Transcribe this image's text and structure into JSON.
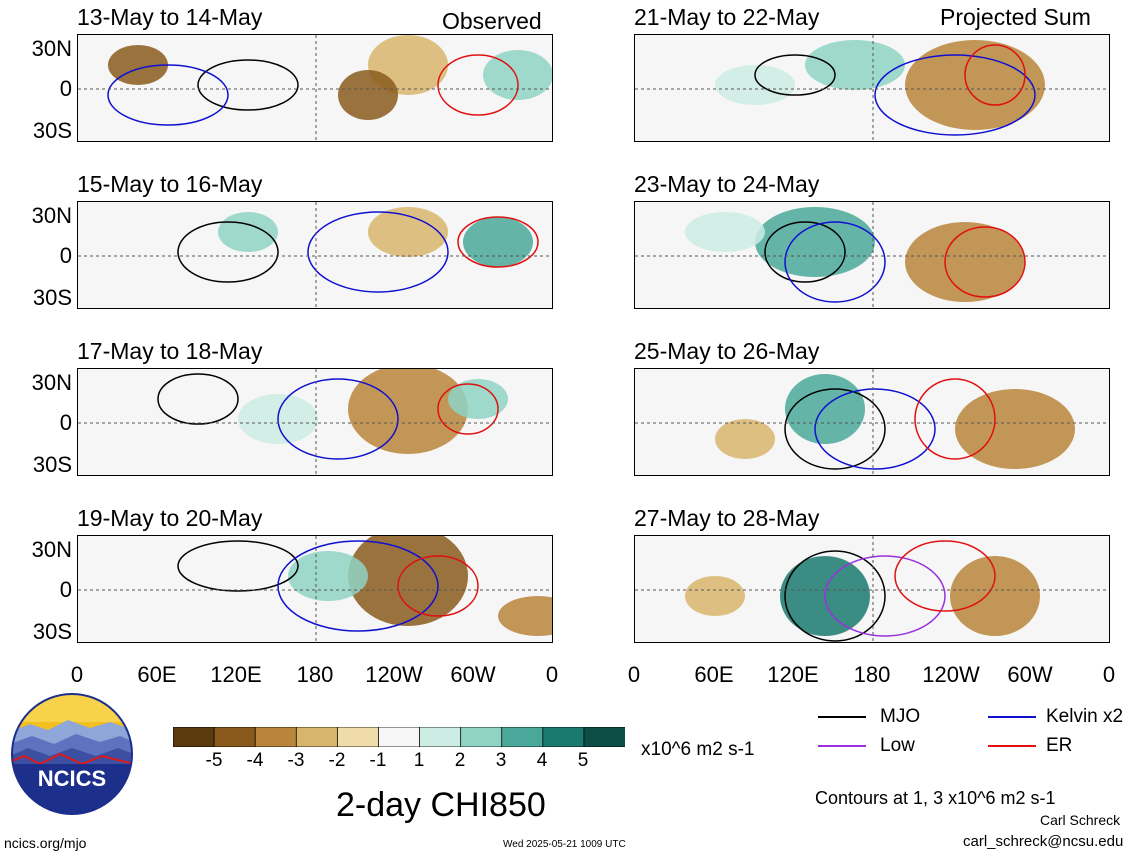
{
  "panels": [
    {
      "date": "13-May to 14-May",
      "tag": "Observed"
    },
    {
      "date": "21-May to 22-May",
      "tag": "Projected Sum"
    },
    {
      "date": "15-May to 16-May",
      "tag": ""
    },
    {
      "date": "23-May to 24-May",
      "tag": ""
    },
    {
      "date": "17-May to 18-May",
      "tag": ""
    },
    {
      "date": "25-May to 26-May",
      "tag": ""
    },
    {
      "date": "19-May to 20-May",
      "tag": ""
    },
    {
      "date": "27-May to 28-May",
      "tag": ""
    }
  ],
  "lat_ticks": [
    "30N",
    "0",
    "30S"
  ],
  "lon_ticks": [
    "0",
    "60E",
    "120E",
    "180",
    "120W",
    "60W",
    "0"
  ],
  "colorbar": {
    "colors": [
      "#5b3a10",
      "#8a5a1c",
      "#b9853a",
      "#d8b56c",
      "#efdcaa",
      "#f6f6f6",
      "#cdece4",
      "#8fd3c4",
      "#4aa89a",
      "#1a7a70",
      "#0c4d46"
    ],
    "labels": [
      "-5",
      "-4",
      "-3",
      "-2",
      "-1",
      "1",
      "2",
      "3",
      "4",
      "5"
    ],
    "units": "x10^6 m2 s-1"
  },
  "legend": [
    {
      "label": "MJO",
      "color": "#000000"
    },
    {
      "label": "Kelvin x2",
      "color": "#1010d0"
    },
    {
      "label": "Low",
      "color": "#9a30e0"
    },
    {
      "label": "ER",
      "color": "#e01010"
    }
  ],
  "title": "2-day CHI850",
  "contours_note": "Contours at 1, 3 x10^6 m2 s-1",
  "author": "Carl Schreck",
  "email": "carl_schreck@ncsu.edu",
  "website": "ncics.org/mjo",
  "timestamp": "Wed 2025-05-21 1009 UTC",
  "logo_text": "NCICS"
}
